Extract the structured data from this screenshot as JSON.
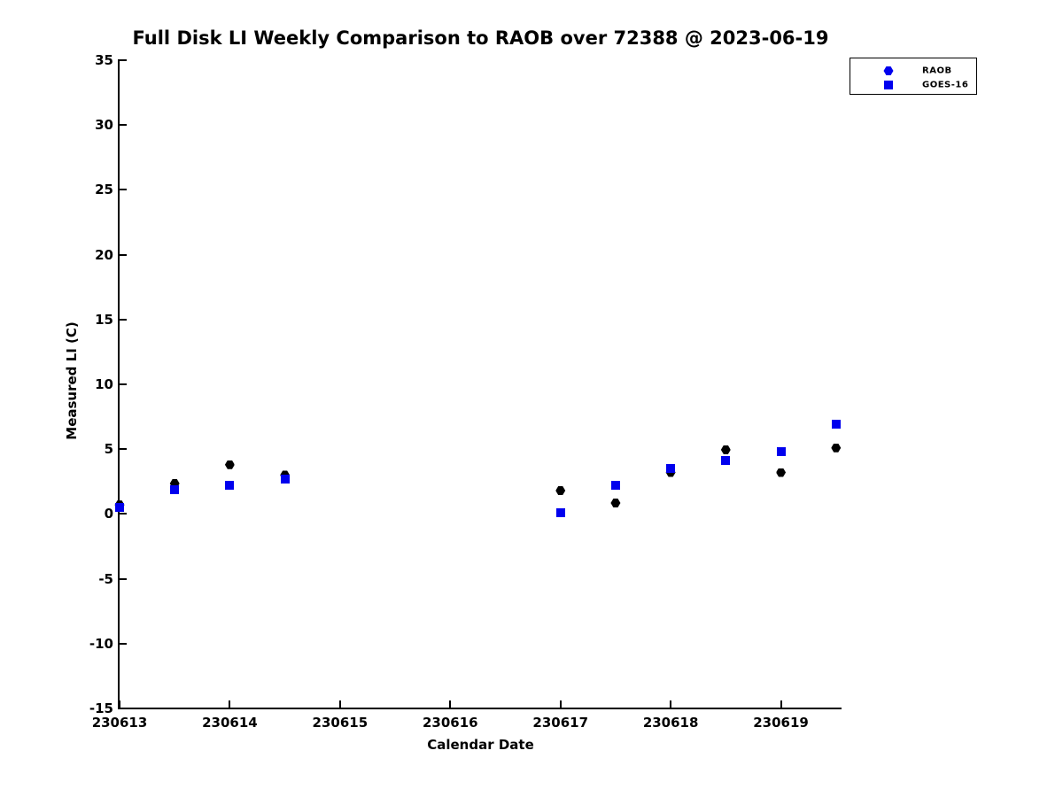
{
  "title": "Full Disk LI Weekly Comparison to RAOB over 72388 @ 2023-06-19",
  "chart_data": {
    "type": "scatter",
    "title": "Full Disk LI Weekly Comparison to RAOB over 72388 @ 2023-06-19",
    "xlabel": "Calendar Date",
    "ylabel": "Measured LI (C)",
    "xlim": [
      230613,
      230619.55
    ],
    "ylim": [
      -15,
      35
    ],
    "xticks": [
      230613,
      230614,
      230615,
      230616,
      230617,
      230618,
      230619
    ],
    "yticks": [
      -15,
      -10,
      -5,
      0,
      5,
      10,
      15,
      20,
      25,
      30,
      35
    ],
    "grid": false,
    "background_color": "#ffffff",
    "axis_color": "#000000",
    "legend": {
      "position": "top-right",
      "entries": [
        {
          "label": "RAOB",
          "marker": "hexagon",
          "color": "#0000ee"
        },
        {
          "label": "GOES-16",
          "marker": "square",
          "color": "#0000ee"
        }
      ]
    },
    "series": [
      {
        "name": "RAOB",
        "marker": "hexagon",
        "color": "#000000",
        "points": [
          {
            "x": 230613.0,
            "y": 0.7
          },
          {
            "x": 230613.5,
            "y": 2.35
          },
          {
            "x": 230614.0,
            "y": 3.8
          },
          {
            "x": 230614.5,
            "y": 3.0
          },
          {
            "x": 230617.0,
            "y": 1.8
          },
          {
            "x": 230617.5,
            "y": 0.85
          },
          {
            "x": 230618.0,
            "y": 3.2
          },
          {
            "x": 230618.5,
            "y": 4.95
          },
          {
            "x": 230619.0,
            "y": 3.2
          },
          {
            "x": 230619.5,
            "y": 5.1
          }
        ]
      },
      {
        "name": "GOES-16",
        "marker": "square",
        "color": "#0000ee",
        "points": [
          {
            "x": 230613.0,
            "y": 0.5
          },
          {
            "x": 230613.5,
            "y": 1.9
          },
          {
            "x": 230614.0,
            "y": 2.2
          },
          {
            "x": 230614.5,
            "y": 2.7
          },
          {
            "x": 230617.0,
            "y": 0.1
          },
          {
            "x": 230617.5,
            "y": 2.2
          },
          {
            "x": 230618.0,
            "y": 3.5
          },
          {
            "x": 230618.5,
            "y": 4.1
          },
          {
            "x": 230619.0,
            "y": 4.8
          },
          {
            "x": 230619.5,
            "y": 6.9
          }
        ]
      }
    ]
  }
}
